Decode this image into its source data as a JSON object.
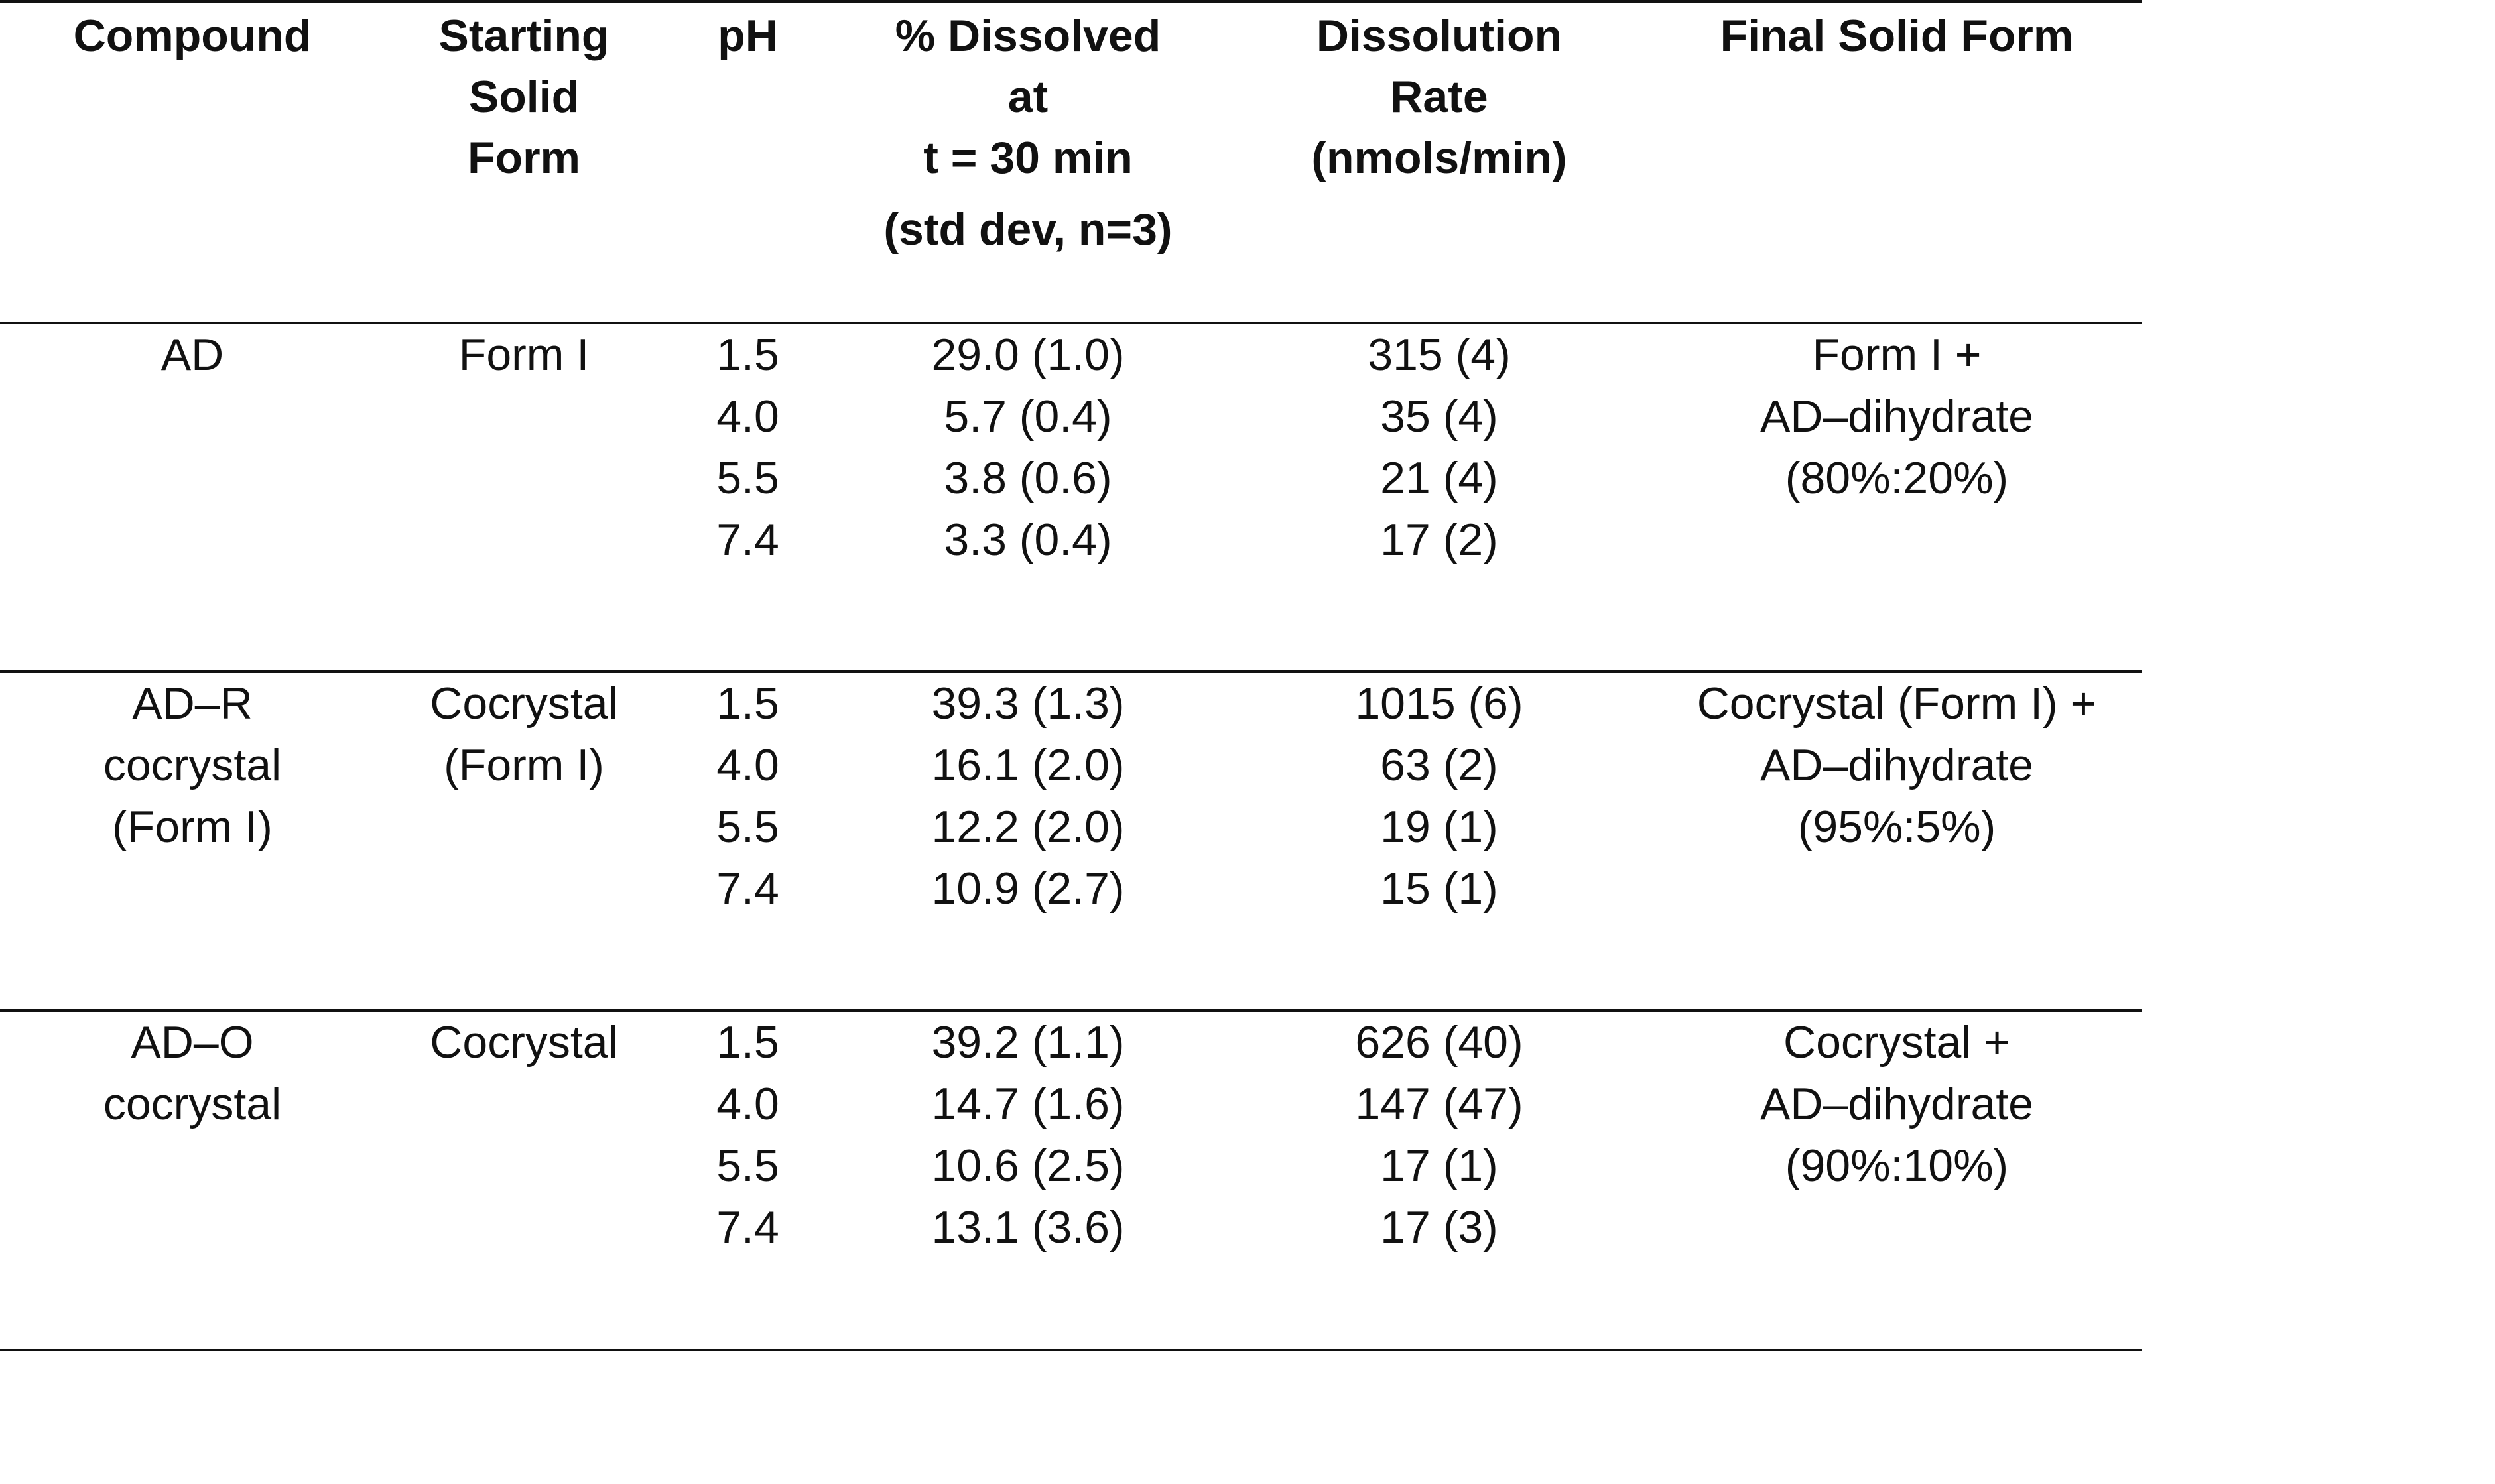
{
  "table": {
    "headers": {
      "compound": [
        "Compound"
      ],
      "starting_solid_form": [
        "Starting",
        "Solid",
        "Form"
      ],
      "ph": [
        "pH"
      ],
      "percent_dissolved": [
        "% Dissolved",
        "at",
        "t = 30 min",
        "(std dev, n=3)"
      ],
      "dissolution_rate": [
        "Dissolution",
        "Rate",
        "(nmols/min)"
      ],
      "final_solid_form": [
        "Final Solid Form"
      ]
    },
    "groups": [
      {
        "compound": [
          "AD"
        ],
        "starting_solid_form": [
          "Form I"
        ],
        "ph": [
          "1.5",
          "4.0",
          "5.5",
          "7.4"
        ],
        "percent_dissolved": [
          "29.0 (1.0)",
          "5.7 (0.4)",
          "3.8 (0.6)",
          "3.3 (0.4)"
        ],
        "dissolution_rate": [
          "315 (4)",
          "35 (4)",
          "21 (4)",
          "17 (2)"
        ],
        "final_solid_form": [
          "Form I +",
          "AD–dihydrate",
          "(80%:20%)"
        ]
      },
      {
        "compound": [
          "AD–R",
          "cocrystal",
          "(Form I)"
        ],
        "starting_solid_form": [
          "Cocrystal",
          "(Form I)"
        ],
        "ph": [
          "1.5",
          "4.0",
          "5.5",
          "7.4"
        ],
        "percent_dissolved": [
          "39.3 (1.3)",
          "16.1 (2.0)",
          "12.2 (2.0)",
          "10.9 (2.7)"
        ],
        "dissolution_rate": [
          "1015 (6)",
          "63 (2)",
          "19 (1)",
          "15 (1)"
        ],
        "final_solid_form": [
          "Cocrystal (Form I) +",
          "AD–dihydrate",
          "(95%:5%)"
        ]
      },
      {
        "compound": [
          "AD–O",
          "cocrystal"
        ],
        "starting_solid_form": [
          "Cocrystal"
        ],
        "ph": [
          "1.5",
          "4.0",
          "5.5",
          "7.4"
        ],
        "percent_dissolved": [
          "39.2 (1.1)",
          "14.7 (1.6)",
          "10.6 (2.5)",
          "13.1 (3.6)"
        ],
        "dissolution_rate": [
          "626 (40)",
          "147 (47)",
          "17 (1)",
          "17 (3)"
        ],
        "final_solid_form": [
          "Cocrystal +",
          "AD–dihydrate",
          "(90%:10%)"
        ]
      }
    ]
  }
}
